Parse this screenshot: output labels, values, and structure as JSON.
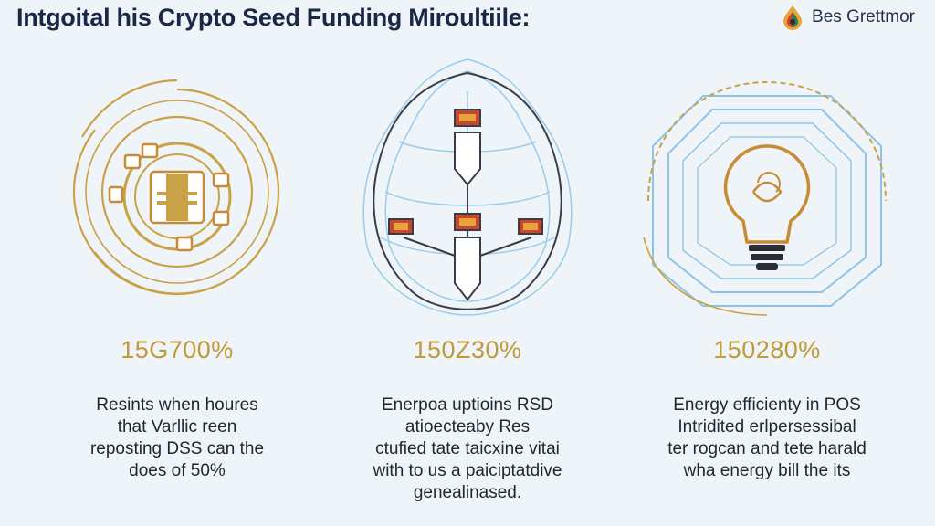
{
  "header": {
    "title": "Intgoital his Crypto Seed Funding Miroultiile:",
    "brand": "Bes Grettmor",
    "logo_icon": "drop-logo-icon"
  },
  "colors": {
    "gold": "#c9a146",
    "blue": "#8ec3e6",
    "dark": "#2a2d36",
    "red": "#c8452e",
    "background": "#eef4f8"
  },
  "columns": [
    {
      "icon": "gear-circuit-icon",
      "stat": "15G700%",
      "lines": [
        "Resints when houres",
        "that Varllic reen",
        "reposting DSS can the",
        "does of 50%"
      ]
    },
    {
      "icon": "mining-network-icon",
      "stat": "150Z30%",
      "lines": [
        "Enerpoa uptioins RSD",
        "atioecteaby Res",
        "ctufied tate taicxine vitai",
        "with to us a paiciptatdive",
        "genealinased."
      ]
    },
    {
      "icon": "lightbulb-icon",
      "stat": "150280%",
      "lines": [
        "Energy efficienty in POS",
        "Intridited erlpersessibal",
        "ter rogcan and tete harald",
        "wha energy bill the its"
      ]
    }
  ]
}
